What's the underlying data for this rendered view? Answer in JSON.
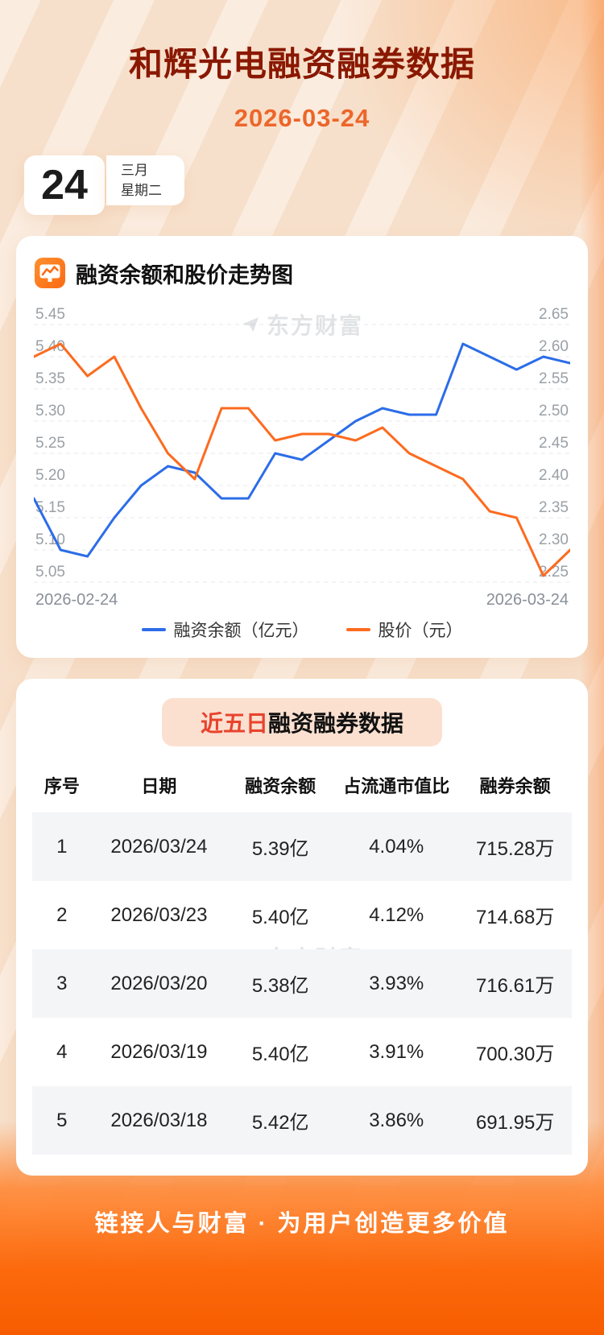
{
  "header": {
    "title": "和辉光电融资融券数据",
    "date": "2026-03-24",
    "calendar": {
      "day": "24",
      "month": "三月",
      "weekday": "星期二"
    }
  },
  "chart_card": {
    "title": "融资余额和股价走势图",
    "watermark": "东方财富"
  },
  "chart_data": {
    "type": "line",
    "title": "融资余额和股价走势图",
    "x_labels": [
      "2026-02-24",
      "2026-03-24"
    ],
    "grid": true,
    "legend_position": "bottom",
    "left_axis": {
      "label": "融资余额（亿元）",
      "min": 5.05,
      "max": 5.45,
      "tick_labels": [
        "5.45",
        "5.40",
        "5.35",
        "5.30",
        "5.25",
        "5.20",
        "5.15",
        "5.10",
        "5.05"
      ]
    },
    "right_axis": {
      "label": "股价（元）",
      "min": 2.25,
      "max": 2.65,
      "tick_labels": [
        "2.65",
        "2.60",
        "2.55",
        "2.50",
        "2.45",
        "2.40",
        "2.35",
        "2.30",
        "2.25"
      ]
    },
    "series": [
      {
        "name": "融资余额（亿元）",
        "axis": "left",
        "color": "#2c6de8",
        "values": [
          5.18,
          5.1,
          5.09,
          5.15,
          5.2,
          5.23,
          5.22,
          5.18,
          5.18,
          5.25,
          5.24,
          5.27,
          5.3,
          5.32,
          5.31,
          5.31,
          5.42,
          5.4,
          5.38,
          5.4,
          5.39
        ]
      },
      {
        "name": "股价（元）",
        "axis": "right",
        "color": "#fc6b1f",
        "values": [
          2.6,
          2.62,
          2.57,
          2.6,
          2.52,
          2.45,
          2.41,
          2.52,
          2.52,
          2.47,
          2.48,
          2.48,
          2.47,
          2.49,
          2.45,
          2.43,
          2.41,
          2.36,
          2.35,
          2.26,
          2.3
        ]
      }
    ]
  },
  "table_card": {
    "title_highlight": "近五日",
    "title_rest": "融资融券数据",
    "watermark": "东方财富",
    "columns": [
      "序号",
      "日期",
      "融资余额",
      "占流通市值比",
      "融券余额"
    ],
    "rows": [
      [
        "1",
        "2026/03/24",
        "5.39亿",
        "4.04%",
        "715.28万"
      ],
      [
        "2",
        "2026/03/23",
        "5.40亿",
        "4.12%",
        "714.68万"
      ],
      [
        "3",
        "2026/03/20",
        "5.38亿",
        "3.93%",
        "716.61万"
      ],
      [
        "4",
        "2026/03/19",
        "5.40亿",
        "3.91%",
        "700.30万"
      ],
      [
        "5",
        "2026/03/18",
        "5.42亿",
        "3.86%",
        "691.95万"
      ]
    ]
  },
  "footer": {
    "slogan": "链接人与财富 · 为用户创造更多价值"
  }
}
